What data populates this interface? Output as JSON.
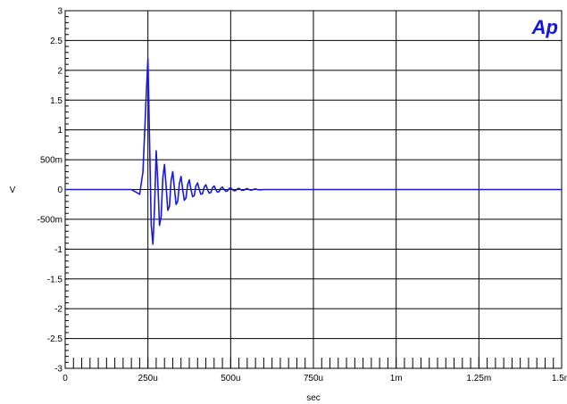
{
  "chart_data": {
    "type": "line",
    "xlabel": "sec",
    "ylabel": "V",
    "xlim": [
      0,
      0.0015
    ],
    "ylim": [
      -3,
      3
    ],
    "x_ticks": [
      {
        "value": 0,
        "label": "0"
      },
      {
        "value": 0.00025,
        "label": "250u"
      },
      {
        "value": 0.0005,
        "label": "500u"
      },
      {
        "value": 0.00075,
        "label": "750u"
      },
      {
        "value": 0.001,
        "label": "1m"
      },
      {
        "value": 0.00125,
        "label": "1.25m"
      },
      {
        "value": 0.0015,
        "label": "1.5m"
      }
    ],
    "y_ticks": [
      {
        "value": 3,
        "label": "3"
      },
      {
        "value": 2.5,
        "label": "2.5"
      },
      {
        "value": 2,
        "label": "2"
      },
      {
        "value": 1.5,
        "label": "1.5"
      },
      {
        "value": 1,
        "label": "1"
      },
      {
        "value": 0.5,
        "label": "500m"
      },
      {
        "value": 0,
        "label": "0"
      },
      {
        "value": -0.5,
        "label": "-500m"
      },
      {
        "value": -1,
        "label": "-1"
      },
      {
        "value": -1.5,
        "label": "-1.5"
      },
      {
        "value": -2,
        "label": "-2"
      },
      {
        "value": -2.5,
        "label": "-2.5"
      },
      {
        "value": -3,
        "label": "-3"
      }
    ],
    "grid": true,
    "logo": "Ap",
    "colors": {
      "series": "#1a1ad4",
      "grid": "#000000",
      "logo": "#1414e6"
    },
    "series": [
      {
        "x": [
          0,
          0.0002,
          0.000225,
          0.000235,
          0.000245,
          0.00025,
          0.000255,
          0.00026,
          0.000265,
          0.00027,
          0.000275,
          0.00028,
          0.000285,
          0.00029,
          0.000295,
          0.0003,
          0.000305,
          0.00031,
          0.000315,
          0.00032,
          0.000325,
          0.00033,
          0.000335,
          0.00034,
          0.000345,
          0.00035,
          0.000355,
          0.00036,
          0.000365,
          0.00037,
          0.000375,
          0.00038,
          0.000385,
          0.00039,
          0.000395,
          0.0004,
          0.000405,
          0.00041,
          0.000415,
          0.00042,
          0.000425,
          0.00043,
          0.000435,
          0.00044,
          0.000445,
          0.00045,
          0.000455,
          0.00046,
          0.000465,
          0.00047,
          0.000475,
          0.00048,
          0.000485,
          0.00049,
          0.000495,
          0.0005,
          0.000505,
          0.00051,
          0.000515,
          0.00052,
          0.000525,
          0.00053,
          0.000535,
          0.00054,
          0.000545,
          0.00055,
          0.000555,
          0.00056,
          0.000565,
          0.00057,
          0.000575,
          0.00058,
          0.000585,
          0.00059,
          0.0006,
          0.0007,
          0.0008,
          0.001,
          0.0012,
          0.0015
        ],
        "y": [
          0,
          0,
          -0.08,
          0.3,
          1.6,
          2.2,
          0.8,
          -0.6,
          -0.92,
          -0.3,
          0.65,
          0.1,
          -0.6,
          -0.45,
          0.2,
          0.42,
          0.05,
          -0.35,
          -0.28,
          0.15,
          0.3,
          0.02,
          -0.25,
          -0.2,
          0.1,
          0.22,
          0.0,
          -0.18,
          -0.14,
          0.08,
          0.16,
          0.0,
          -0.12,
          -0.1,
          0.06,
          0.11,
          0.0,
          -0.08,
          -0.07,
          0.04,
          0.08,
          0.0,
          -0.06,
          -0.05,
          0.03,
          0.06,
          0.0,
          -0.045,
          -0.035,
          0.02,
          0.04,
          0.0,
          -0.03,
          -0.025,
          0.015,
          0.03,
          0.0,
          -0.02,
          -0.018,
          0.01,
          0.02,
          0.0,
          -0.015,
          -0.012,
          0.008,
          0.015,
          0.0,
          -0.01,
          -0.008,
          0.005,
          0.01,
          0.0,
          -0.006,
          -0.005,
          0.0,
          0.0,
          0.0,
          0.0,
          0.0,
          0.0
        ]
      }
    ]
  }
}
